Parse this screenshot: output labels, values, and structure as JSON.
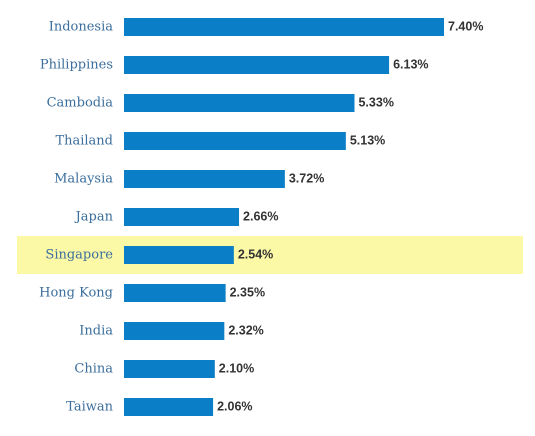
{
  "chart_data": {
    "type": "bar",
    "orientation": "horizontal",
    "categories": [
      "Indonesia",
      "Philippines",
      "Cambodia",
      "Thailand",
      "Malaysia",
      "Japan",
      "Singapore",
      "Hong Kong",
      "India",
      "China",
      "Taiwan"
    ],
    "values": [
      7.4,
      6.13,
      5.33,
      5.13,
      3.72,
      2.66,
      2.54,
      2.35,
      2.32,
      2.1,
      2.06
    ],
    "value_labels": [
      "7.40%",
      "6.13%",
      "5.33%",
      "5.13%",
      "3.72%",
      "2.66%",
      "2.54%",
      "2.35%",
      "2.32%",
      "2.10%",
      "2.06%"
    ],
    "color": "#0a7fc8",
    "highlight": "Singapore",
    "highlight_color": "#fbf8a6"
  }
}
